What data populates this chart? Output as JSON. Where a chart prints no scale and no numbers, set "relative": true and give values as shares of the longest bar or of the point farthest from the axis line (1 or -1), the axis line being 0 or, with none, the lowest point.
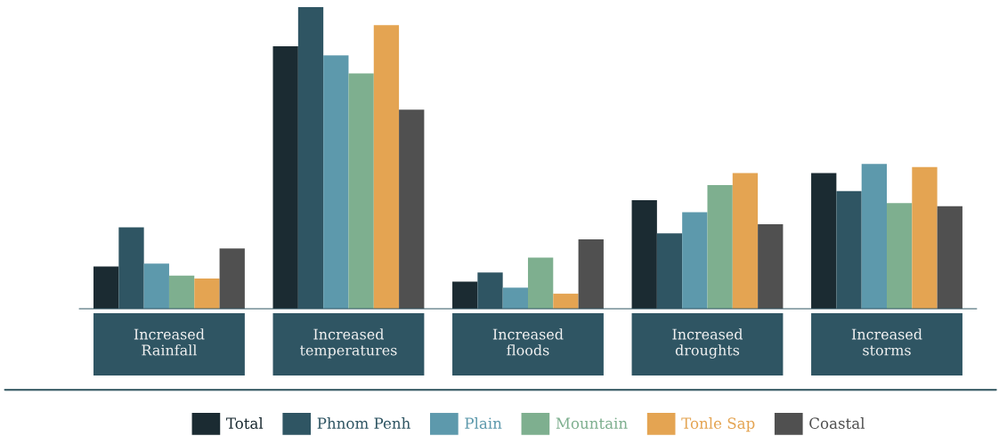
{
  "chart_data": {
    "type": "bar",
    "relative": true,
    "legend": "bottom",
    "categories": [
      "Increased\nRainfall",
      "Increased\ntemperatures",
      "Increased\nfloods",
      "Increased\ndroughts",
      "Increased\nstorms"
    ],
    "series": [
      {
        "name": "Total",
        "color": "#1b2b32",
        "values": [
          0.14,
          0.87,
          0.09,
          0.36,
          0.45
        ]
      },
      {
        "name": "Phnom Penh",
        "color": "#2f5563",
        "values": [
          0.27,
          1.0,
          0.12,
          0.25,
          0.39
        ]
      },
      {
        "name": "Plain",
        "color": "#5d99ac",
        "values": [
          0.15,
          0.84,
          0.07,
          0.32,
          0.48
        ]
      },
      {
        "name": "Mountain",
        "color": "#7eaf8f",
        "values": [
          0.11,
          0.78,
          0.17,
          0.41,
          0.35
        ]
      },
      {
        "name": "Tonle Sap",
        "color": "#e4a452",
        "values": [
          0.1,
          0.94,
          0.05,
          0.45,
          0.47
        ]
      },
      {
        "name": "Coastal",
        "color": "#505050",
        "values": [
          0.2,
          0.66,
          0.23,
          0.28,
          0.34
        ]
      }
    ]
  }
}
